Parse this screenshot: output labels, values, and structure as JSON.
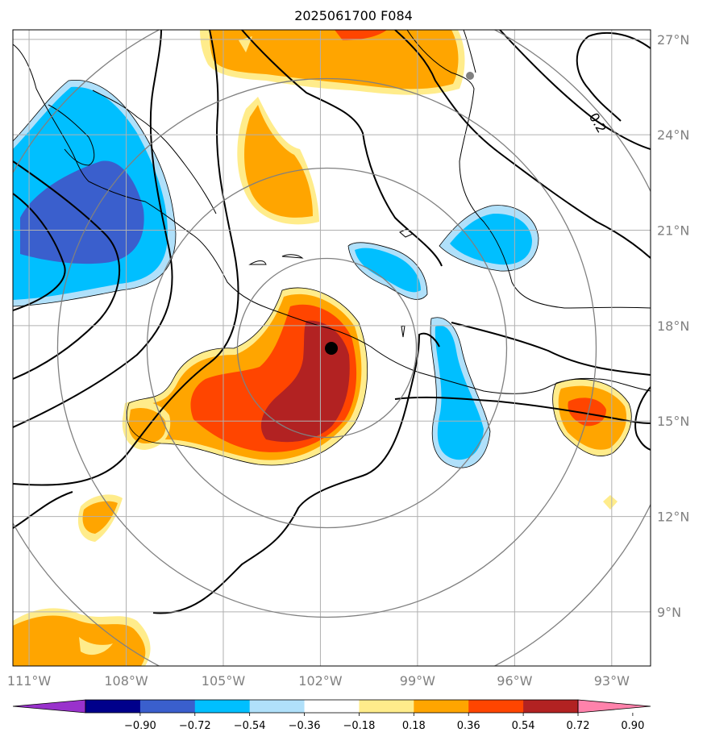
{
  "title": "2025061700 F084",
  "map": {
    "lon_range": [
      -111.5,
      -91.8
    ],
    "lat_range": [
      7.3,
      27.3
    ],
    "center": {
      "lon": -101.8,
      "lat": 17.3
    },
    "lon_ticks": [
      {
        "value": -111,
        "label": "111°W"
      },
      {
        "value": -108,
        "label": "108°W"
      },
      {
        "value": -105,
        "label": "105°W"
      },
      {
        "value": -102,
        "label": "102°W"
      },
      {
        "value": -99,
        "label": "99°W"
      },
      {
        "value": -96,
        "label": "96°W"
      },
      {
        "value": -93,
        "label": "93°W"
      }
    ],
    "lat_ticks": [
      {
        "value": 9,
        "label": "9°N"
      },
      {
        "value": 12,
        "label": "12°N"
      },
      {
        "value": 15,
        "label": "15°N"
      },
      {
        "value": 18,
        "label": "18°N"
      },
      {
        "value": 21,
        "label": "21°N"
      },
      {
        "value": 24,
        "label": "24°N"
      },
      {
        "value": 27,
        "label": "27°N"
      }
    ],
    "contour_label": "0.2"
  },
  "colorbar": {
    "levels": [
      "−0.90",
      "−0.72",
      "−0.54",
      "−0.36",
      "−0.18",
      "0.18",
      "0.36",
      "0.54",
      "0.72",
      "0.90"
    ],
    "colors": [
      "#9932cc",
      "#00008b",
      "#3a5fcd",
      "#00bfff",
      "#b0e0fa",
      "#ffffff",
      "#ffec8b",
      "#ffa500",
      "#ff4500",
      "#b22222",
      "#ff82ab"
    ]
  },
  "colors": {
    "grid": "#b0b0b0",
    "range_rings": "#808080",
    "storm_center": "#000000",
    "coast": "#000000"
  }
}
